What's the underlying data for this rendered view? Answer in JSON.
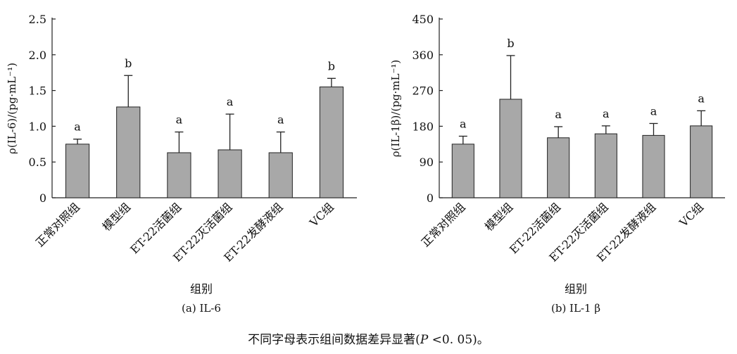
{
  "chart_data": [
    {
      "type": "bar",
      "categories": [
        "正常对照组",
        "模型组",
        "ET-22活菌组",
        "ET-22灭活菌组",
        "ET-22发酵液组",
        "VC组"
      ],
      "values": [
        0.75,
        1.27,
        0.63,
        0.67,
        0.63,
        1.55
      ],
      "errors": [
        0.07,
        0.44,
        0.29,
        0.5,
        0.29,
        0.12
      ],
      "sig_labels": [
        "a",
        "b",
        "a",
        "a",
        "a",
        "b"
      ],
      "ylabel": "ρ(IL-6)/(pg·mL⁻¹)",
      "xlabel": "组别",
      "subtitle": "(a) IL-6",
      "ylim": [
        0,
        2.5
      ],
      "yticks": [
        "0",
        "0.5",
        "1.0",
        "1.5",
        "2.0",
        "2.5"
      ],
      "bar_color": "#a8a8a8"
    },
    {
      "type": "bar",
      "categories": [
        "正常对照组",
        "模型组",
        "ET-22活菌组",
        "ET-22灭活菌组",
        "ET-22发酵液组",
        "VC组"
      ],
      "values": [
        135,
        248,
        151,
        161,
        157,
        181
      ],
      "errors": [
        20,
        110,
        28,
        20,
        30,
        38
      ],
      "sig_labels": [
        "a",
        "b",
        "a",
        "a",
        "a",
        "a"
      ],
      "ylabel": "ρ(IL-1β)/(pg·mL⁻¹)",
      "xlabel": "组别",
      "subtitle": "(b) IL-1 β",
      "ylim": [
        0,
        450
      ],
      "yticks": [
        "0",
        "90",
        "180",
        "270",
        "360",
        "450"
      ],
      "bar_color": "#a8a8a8"
    }
  ],
  "footnote": {
    "text_before": "不同字母表示组间数据差异显著(",
    "p_symbol": "P",
    "text_after": " <0. 05)。"
  }
}
